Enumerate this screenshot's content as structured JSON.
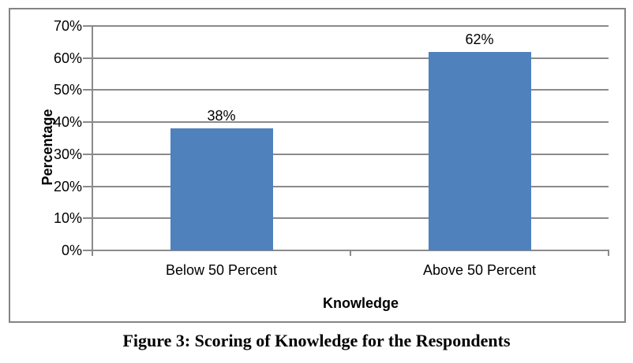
{
  "figure": {
    "caption": "Figure 3: Scoring of Knowledge for the Respondents"
  },
  "chart_data": {
    "type": "bar",
    "categories": [
      "Below 50 Percent",
      "Above 50 Percent"
    ],
    "values": [
      38,
      62
    ],
    "value_labels": [
      "38%",
      "62%"
    ],
    "xlabel": "Knowledge",
    "ylabel": "Percentage",
    "ylim": [
      0,
      70
    ],
    "ytick_step": 10,
    "ytick_labels": [
      "0%",
      "10%",
      "20%",
      "30%",
      "40%",
      "50%",
      "60%",
      "70%"
    ],
    "grid": true,
    "legend": false,
    "colors": {
      "bar": "#4F81BD",
      "gridline": "#8A8A8A",
      "axis": "#8A8A8A",
      "frame_border": "#848484",
      "text": "#000000"
    }
  }
}
